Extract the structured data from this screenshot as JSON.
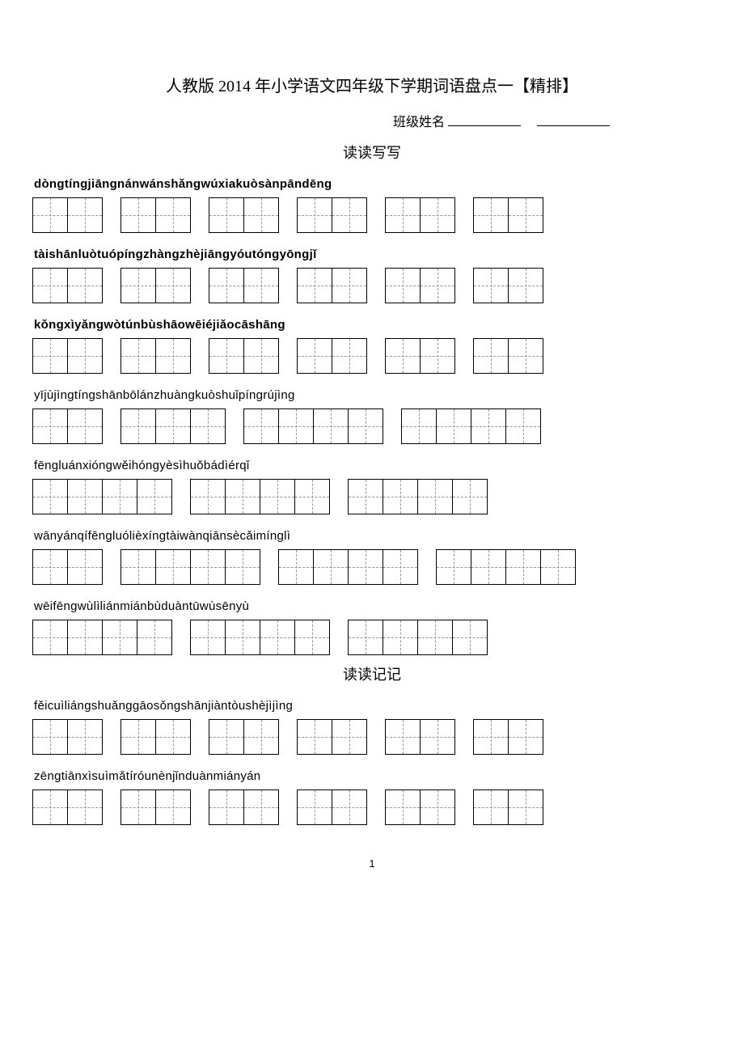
{
  "title": "人教版 2014 年小学语文四年级下学期词语盘点一【精排】",
  "class_label": "班级姓名",
  "section1": "读读写写",
  "section2": "读读记记",
  "page_number": "1",
  "rows": [
    {
      "pinyin": "dòngtíngjiāngnánwánshǎngwúxiakuòsànpāndēng",
      "bold": true,
      "groups": [
        2,
        2,
        2,
        2,
        2,
        2
      ]
    },
    {
      "pinyin": "tàishānluòtuópíngzhàngzhèjiāngyóutóngyōngjǐ",
      "bold": true,
      "groups": [
        2,
        2,
        2,
        2,
        2,
        2
      ]
    },
    {
      "pinyin": "kǒngxìyǎngwòtúnbùshāowēiéjiǎocāshāng",
      "bold": true,
      "groups": [
        2,
        2,
        2,
        2,
        2,
        2
      ]
    },
    {
      "pinyin": "yījùjìngtíngshānbōlánzhuàngkuòshuǐpíngrújìng",
      "bold": false,
      "groups": [
        2,
        3,
        4,
        4
      ]
    },
    {
      "pinyin": "fēngluánxióngwěihóngyèsìhuǒbádìérqǐ",
      "bold": false,
      "groups": [
        4,
        4,
        4
      ]
    },
    {
      "pinyin": "wānyánqífēngluólièxíngtàiwànqiānsècǎimínglì",
      "bold": false,
      "groups": [
        2,
        4,
        4,
        4
      ]
    },
    {
      "pinyin": "wēifēngwùlìliánmiánbùduàntūwùsēnyù",
      "bold": false,
      "groups": [
        4,
        4,
        4
      ]
    },
    {
      "section": "读读记记"
    },
    {
      "pinyin": "fěicuìliángshuǎnggāosǒngshānjiàntòushèjìjìng",
      "bold": false,
      "groups": [
        2,
        2,
        2,
        2,
        2,
        2
      ]
    },
    {
      "pinyin": "zēngtiānxìsuìmǎtíróunènjǐnduànmiányán",
      "bold": false,
      "groups": [
        2,
        2,
        2,
        2,
        2,
        2
      ]
    }
  ]
}
